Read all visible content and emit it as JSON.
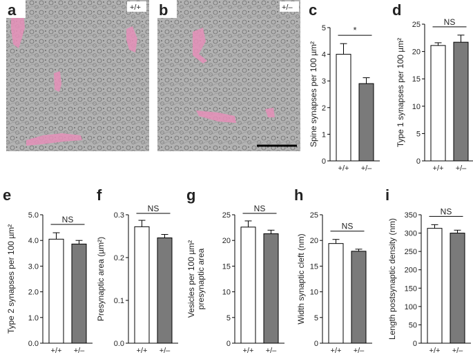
{
  "panels": {
    "a": {
      "letter": "a",
      "genotype": "+/+"
    },
    "b": {
      "letter": "b",
      "genotype": "+/–"
    }
  },
  "colors": {
    "wt_bar": "#ffffff",
    "het_bar": "#7a7a7a",
    "em_background": "#a9a9a9",
    "highlight": "#e58fb8"
  },
  "chart_data": [
    {
      "letter": "c",
      "type": "bar",
      "categories": [
        "+/+",
        "+/–"
      ],
      "values": [
        4.0,
        2.9
      ],
      "errors": [
        0.4,
        0.22
      ],
      "ylabel": "Spine synapses per 100 µm²",
      "ylim": [
        0,
        5
      ],
      "yticks": [
        "0",
        "1",
        "2",
        "3",
        "4",
        "5"
      ],
      "significance": "*"
    },
    {
      "letter": "d",
      "type": "bar",
      "categories": [
        "+/+",
        "+/–"
      ],
      "values": [
        21.1,
        21.7
      ],
      "errors": [
        0.5,
        1.3
      ],
      "ylabel": "Type 1 synapses per 100 µm²",
      "ylim": [
        0,
        25
      ],
      "yticks": [
        "0",
        "5",
        "10",
        "15",
        "20",
        "25"
      ],
      "significance": "NS"
    },
    {
      "letter": "e",
      "type": "bar",
      "categories": [
        "+/+",
        "+/–"
      ],
      "values": [
        4.05,
        3.86
      ],
      "errors": [
        0.25,
        0.14
      ],
      "ylabel": "Type 2 synapses per 100 µm²",
      "ylim": [
        0,
        5
      ],
      "yticks": [
        "0.0",
        "1.0",
        "2.0",
        "3.0",
        "4.0",
        "5.0"
      ],
      "significance": "NS"
    },
    {
      "letter": "f",
      "type": "bar",
      "categories": [
        "+/+",
        "+/–"
      ],
      "values": [
        0.272,
        0.246
      ],
      "errors": [
        0.015,
        0.008
      ],
      "ylabel": "Presynaptic area (µm²)",
      "ylim": [
        0,
        0.3
      ],
      "yticks": [
        "0.0",
        "0.1",
        "0.2",
        "0.3"
      ],
      "significance": "NS"
    },
    {
      "letter": "g",
      "type": "bar",
      "categories": [
        "+/+",
        "+/–"
      ],
      "values": [
        22.6,
        21.3
      ],
      "errors": [
        1.2,
        0.7
      ],
      "ylabel": "Vesicles per 100 µm²",
      "ylabel2": "presynaptic area",
      "ylim": [
        0,
        25
      ],
      "yticks": [
        "0",
        "5",
        "10",
        "15",
        "20",
        "25"
      ],
      "significance": "NS"
    },
    {
      "letter": "h",
      "type": "bar",
      "categories": [
        "+/+",
        "+/–"
      ],
      "values": [
        19.4,
        17.9
      ],
      "errors": [
        0.8,
        0.4
      ],
      "ylabel": "Width synaptic cleft (nm)",
      "ylim": [
        0,
        25
      ],
      "yticks": [
        "0",
        "5",
        "10",
        "15",
        "20",
        "25"
      ],
      "significance": "NS"
    },
    {
      "letter": "i",
      "type": "bar",
      "categories": [
        "+/+",
        "+/–"
      ],
      "values": [
        313,
        300
      ],
      "errors": [
        10,
        8
      ],
      "ylabel": "Length postsynaptic density (nm)",
      "ylim": [
        0,
        350
      ],
      "yticks": [
        "0",
        "50",
        "100",
        "150",
        "200",
        "250",
        "300",
        "350"
      ],
      "significance": "NS"
    }
  ]
}
